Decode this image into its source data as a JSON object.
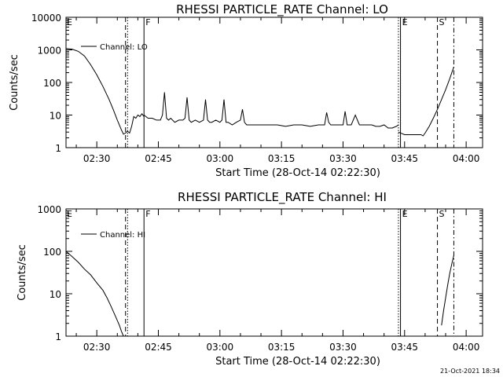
{
  "chart_data": [
    {
      "type": "line",
      "title": "RHESSI PARTICLE_RATE Channel: LO",
      "xlabel": "Start Time (28-Oct-14 02:22:30)",
      "ylabel": "Counts/sec",
      "y_scale": "log",
      "ylim": [
        1,
        10000
      ],
      "y_ticks": [
        1,
        10,
        100,
        1000,
        10000
      ],
      "y_tick_labels": [
        "1",
        "10",
        "100",
        "1000",
        "10000"
      ],
      "xlim": [
        "02:22:30",
        "04:04:00"
      ],
      "x_ticks": [
        "02:30",
        "02:45",
        "03:00",
        "03:15",
        "03:30",
        "03:45",
        "04:00"
      ],
      "legend": {
        "position": "top-left",
        "label": "Channel: LO"
      },
      "markers": [
        {
          "time": "02:37:00",
          "style": "dashed",
          "label": ""
        },
        {
          "time": "02:37:30",
          "style": "dotted",
          "label": ""
        },
        {
          "time": "02:41:30",
          "style": "solid",
          "label": "F"
        },
        {
          "time": "03:43:30",
          "style": "dotted",
          "label": ""
        },
        {
          "time": "03:44:00",
          "style": "solid",
          "label": "E"
        },
        {
          "time": "03:53:00",
          "style": "dashed",
          "label": "S"
        },
        {
          "time": "03:57:00",
          "style": "dashdot",
          "label": ""
        }
      ],
      "corner_label": "E",
      "series": [
        {
          "name": "Channel: LO",
          "segments": [
            {
              "times": [
                "02:22:30",
                "02:24:00",
                "02:25:30",
                "02:27:00",
                "02:28:30",
                "02:30:00",
                "02:31:30",
                "02:33:00",
                "02:34:00",
                "02:35:00",
                "02:36:00",
                "02:36:30",
                "02:37:00",
                "02:37:30",
                "02:38:00",
                "02:38:30",
                "02:39:00",
                "02:39:30",
                "02:40:00",
                "02:40:30",
                "02:41:00",
                "02:41:30"
              ],
              "values": [
                1100,
                1050,
                900,
                650,
                350,
                170,
                75,
                30,
                15,
                7,
                3.5,
                2.6,
                2.8,
                3.2,
                2.8,
                4.5,
                9,
                8,
                10,
                9,
                11,
                9
              ]
            },
            {
              "times": [
                "02:41:30",
                "02:42:30",
                "02:43:30",
                "02:44:30",
                "02:45:30",
                "02:46:00",
                "02:46:30",
                "02:47:00",
                "02:47:30",
                "02:48:00",
                "02:49:00",
                "02:50:00",
                "02:51:00",
                "02:51:30",
                "02:52:00",
                "02:52:30",
                "02:53:00",
                "02:54:00",
                "02:55:00",
                "02:56:00",
                "02:56:30",
                "02:57:00",
                "02:57:30",
                "02:58:00",
                "02:59:00",
                "03:00:00",
                "03:00:30",
                "03:01:00",
                "03:01:30",
                "03:02:00",
                "03:03:00",
                "03:04:00",
                "03:05:00",
                "03:05:30",
                "03:06:00",
                "03:06:30",
                "03:07:00",
                "03:08:00",
                "03:10:00",
                "03:12:00",
                "03:14:00",
                "03:16:00",
                "03:18:00",
                "03:20:00",
                "03:22:00",
                "03:24:00",
                "03:25:30",
                "03:26:00",
                "03:26:30",
                "03:27:00",
                "03:28:00",
                "03:29:00",
                "03:30:00",
                "03:30:30",
                "03:31:00",
                "03:31:30",
                "03:32:00",
                "03:33:00",
                "03:34:00",
                "03:35:00",
                "03:36:00",
                "03:37:00",
                "03:38:00",
                "03:39:00",
                "03:40:00",
                "03:41:00",
                "03:42:00",
                "03:43:00",
                "03:43:30"
              ],
              "values": [
                10,
                8,
                8,
                7,
                7,
                10,
                50,
                8,
                7,
                8,
                6,
                7,
                7,
                8,
                35,
                7,
                6,
                7,
                6,
                7,
                30,
                7,
                6,
                6,
                7,
                6,
                7,
                30,
                6,
                6,
                5,
                6,
                7,
                15,
                6,
                5,
                5,
                5,
                5,
                5,
                5,
                4.5,
                5,
                5,
                4.5,
                5,
                5,
                12,
                6,
                5,
                5,
                5,
                5,
                13,
                5,
                5,
                5,
                10,
                5,
                5,
                5,
                5,
                4.5,
                4.5,
                5,
                4,
                4,
                4.5,
                5
              ]
            },
            {
              "times": [
                "03:43:30",
                "03:45:00",
                "03:46:00",
                "03:47:00",
                "03:48:00",
                "03:49:00",
                "03:49:30",
                "03:50:00",
                "03:51:00",
                "03:52:00",
                "03:53:00",
                "03:54:00",
                "03:55:00",
                "03:56:00",
                "03:57:00"
              ],
              "values": [
                3,
                2.5,
                2.5,
                2.5,
                2.5,
                2.5,
                2.3,
                2.8,
                4.5,
                8,
                15,
                30,
                60,
                130,
                300
              ]
            }
          ]
        }
      ]
    },
    {
      "type": "line",
      "title": "RHESSI PARTICLE_RATE Channel: HI",
      "xlabel": "Start Time (28-Oct-14 02:22:30)",
      "ylabel": "Counts/sec",
      "y_scale": "log",
      "ylim": [
        1,
        1000
      ],
      "y_ticks": [
        1,
        10,
        100,
        1000
      ],
      "y_tick_labels": [
        "1",
        "10",
        "100",
        "1000"
      ],
      "xlim": [
        "02:22:30",
        "04:04:00"
      ],
      "x_ticks": [
        "02:30",
        "02:45",
        "03:00",
        "03:15",
        "03:30",
        "03:45",
        "04:00"
      ],
      "legend": {
        "position": "top-left",
        "label": "Channel: HI"
      },
      "markers": [
        {
          "time": "02:37:00",
          "style": "dashed",
          "label": ""
        },
        {
          "time": "02:37:30",
          "style": "dotted",
          "label": ""
        },
        {
          "time": "02:41:30",
          "style": "solid",
          "label": "F"
        },
        {
          "time": "03:43:30",
          "style": "dotted",
          "label": ""
        },
        {
          "time": "03:44:00",
          "style": "solid",
          "label": "E"
        },
        {
          "time": "03:53:00",
          "style": "dashed",
          "label": "S"
        },
        {
          "time": "03:57:00",
          "style": "dashdot",
          "label": ""
        }
      ],
      "corner_label": "E",
      "series": [
        {
          "name": "Channel: HI",
          "segments": [
            {
              "times": [
                "02:22:30",
                "02:24:00",
                "02:25:30",
                "02:27:00",
                "02:28:30",
                "02:30:00",
                "02:31:30",
                "02:32:30",
                "02:33:30",
                "02:34:30",
                "02:35:30",
                "02:36:00",
                "02:36:30"
              ],
              "values": [
                100,
                75,
                55,
                38,
                28,
                18,
                12,
                8,
                5,
                3,
                1.8,
                1.3,
                1
              ]
            },
            {
              "times": [
                "03:54:00",
                "03:54:30",
                "03:55:00",
                "03:55:30",
                "03:56:00",
                "03:56:30",
                "03:57:00"
              ],
              "values": [
                1.8,
                4,
                8,
                16,
                30,
                50,
                80
              ]
            }
          ]
        }
      ]
    }
  ],
  "footer": {
    "timestamp": "21-Oct-2021 18:34"
  }
}
